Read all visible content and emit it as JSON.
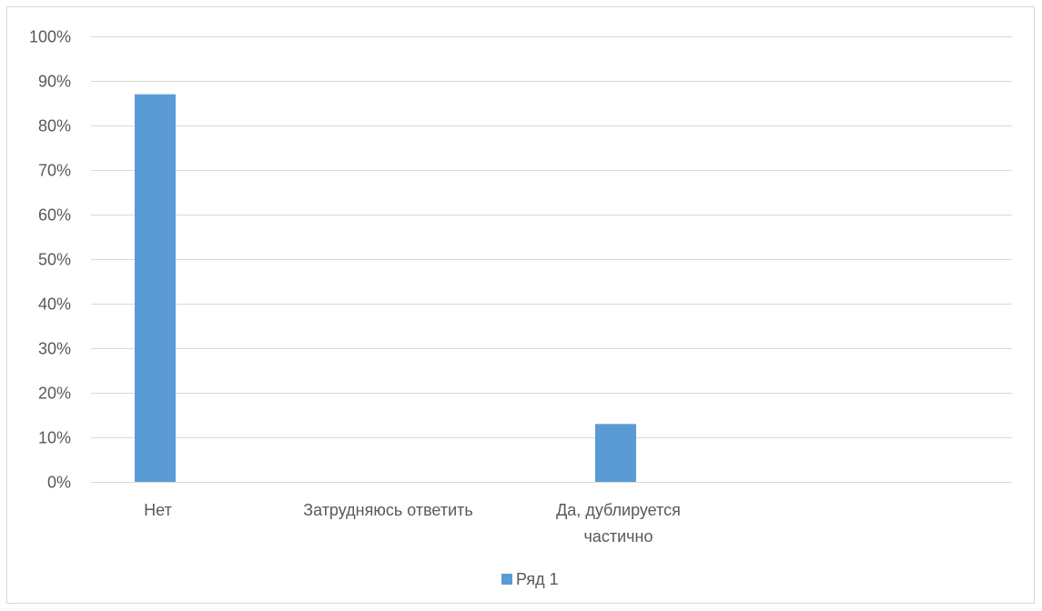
{
  "chart_data": {
    "type": "bar",
    "categories": [
      "Нет",
      "Затрудняюсь ответить",
      "Да, дублируется частично",
      ""
    ],
    "category_lines": [
      [
        "Нет"
      ],
      [
        "Затрудняюсь ответить"
      ],
      [
        "Да, дублируется",
        "частично"
      ],
      []
    ],
    "series": [
      {
        "name": "Ряд 1",
        "values": [
          0.87,
          0,
          0.13,
          0
        ],
        "color": "#5B9BD5"
      }
    ],
    "yticks": [
      "0%",
      "10%",
      "20%",
      "30%",
      "40%",
      "50%",
      "60%",
      "70%",
      "80%",
      "90%",
      "100%"
    ],
    "ylim": [
      0,
      1
    ],
    "grid": true,
    "legend": "bottom",
    "gridline_color": "#d9d9d9",
    "text_color": "#595959"
  }
}
